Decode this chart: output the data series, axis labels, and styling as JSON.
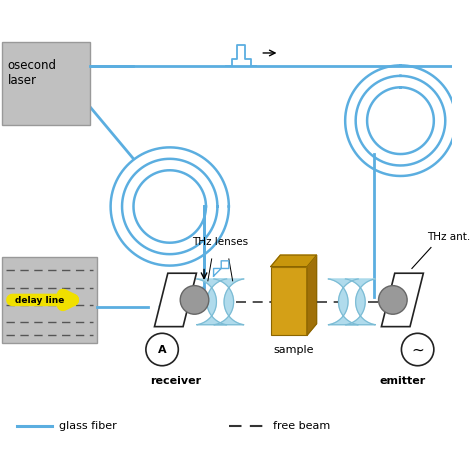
{
  "bg_color": "#ffffff",
  "fiber_color": "#5baee0",
  "box_color": "#c0c0c0",
  "lens_color": "#a8d8ea",
  "lens_edge": "#7bbbd4",
  "sample_front": "#d4a017",
  "sample_top": "#c8960c",
  "sample_right": "#a07008",
  "antenna_fill": "#ffffff",
  "antenna_edge": "#222222",
  "circle_fill": "#aaaaaa",
  "label_laser": "osecond\nlaser",
  "label_delay": "delay line",
  "label_receiver": "receiver",
  "label_sample": "sample",
  "label_emitter": "emitter",
  "label_thz_lenses": "THz lenses",
  "label_thz_ant": "THz ant.",
  "legend_fiber": "glass fiber",
  "legend_beam": "free beam"
}
